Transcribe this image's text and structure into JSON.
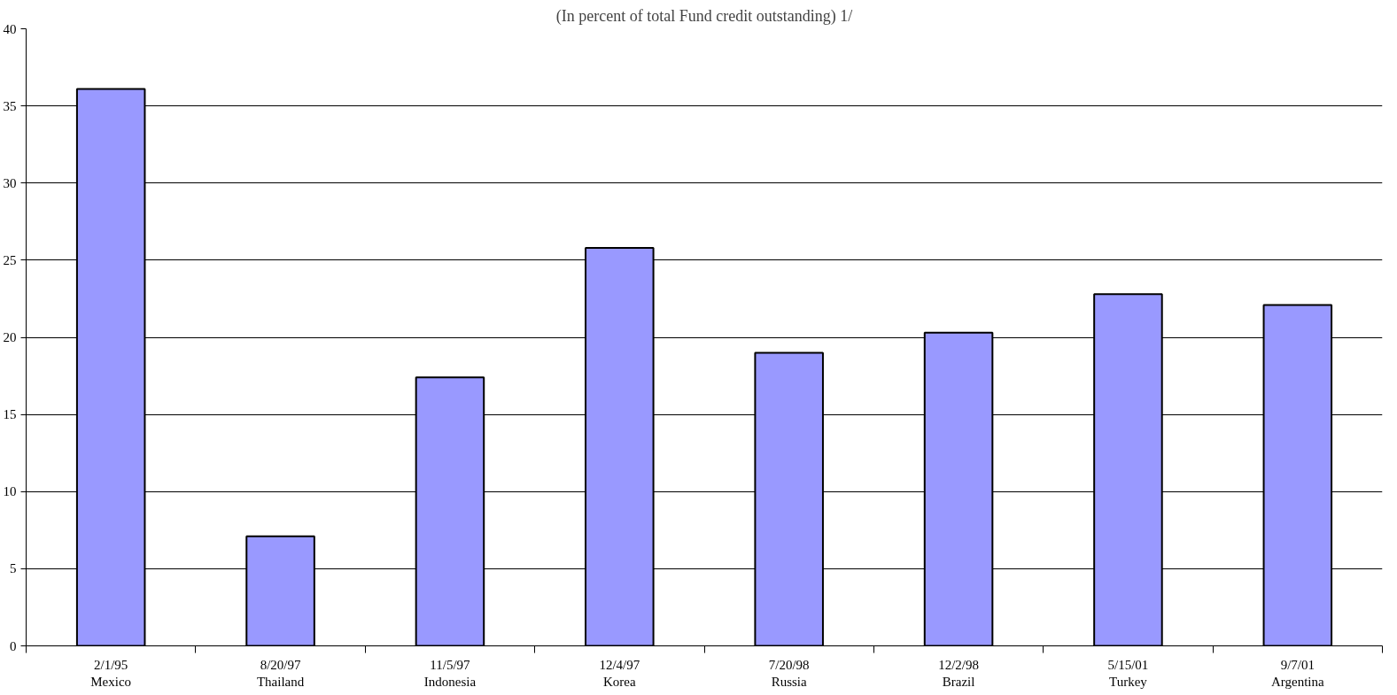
{
  "chart_data": {
    "type": "bar",
    "title": "(In percent of total Fund credit outstanding) 1/",
    "categories": [
      "2/1/95\nMexico",
      "8/20/97\nThailand",
      "11/5/97\nIndonesia",
      "12/4/97\nKorea",
      "7/20/98\nRussia",
      "12/2/98\nBrazil",
      "5/15/01\nTurkey",
      "9/7/01\nArgentina"
    ],
    "values": [
      36.1,
      7.1,
      17.4,
      25.8,
      19.0,
      20.3,
      22.8,
      22.1
    ],
    "color": "#9999ff",
    "ylim": [
      0,
      40
    ],
    "yticks": [
      0,
      5,
      10,
      15,
      20,
      25,
      30,
      35,
      40
    ],
    "grid": "y"
  }
}
